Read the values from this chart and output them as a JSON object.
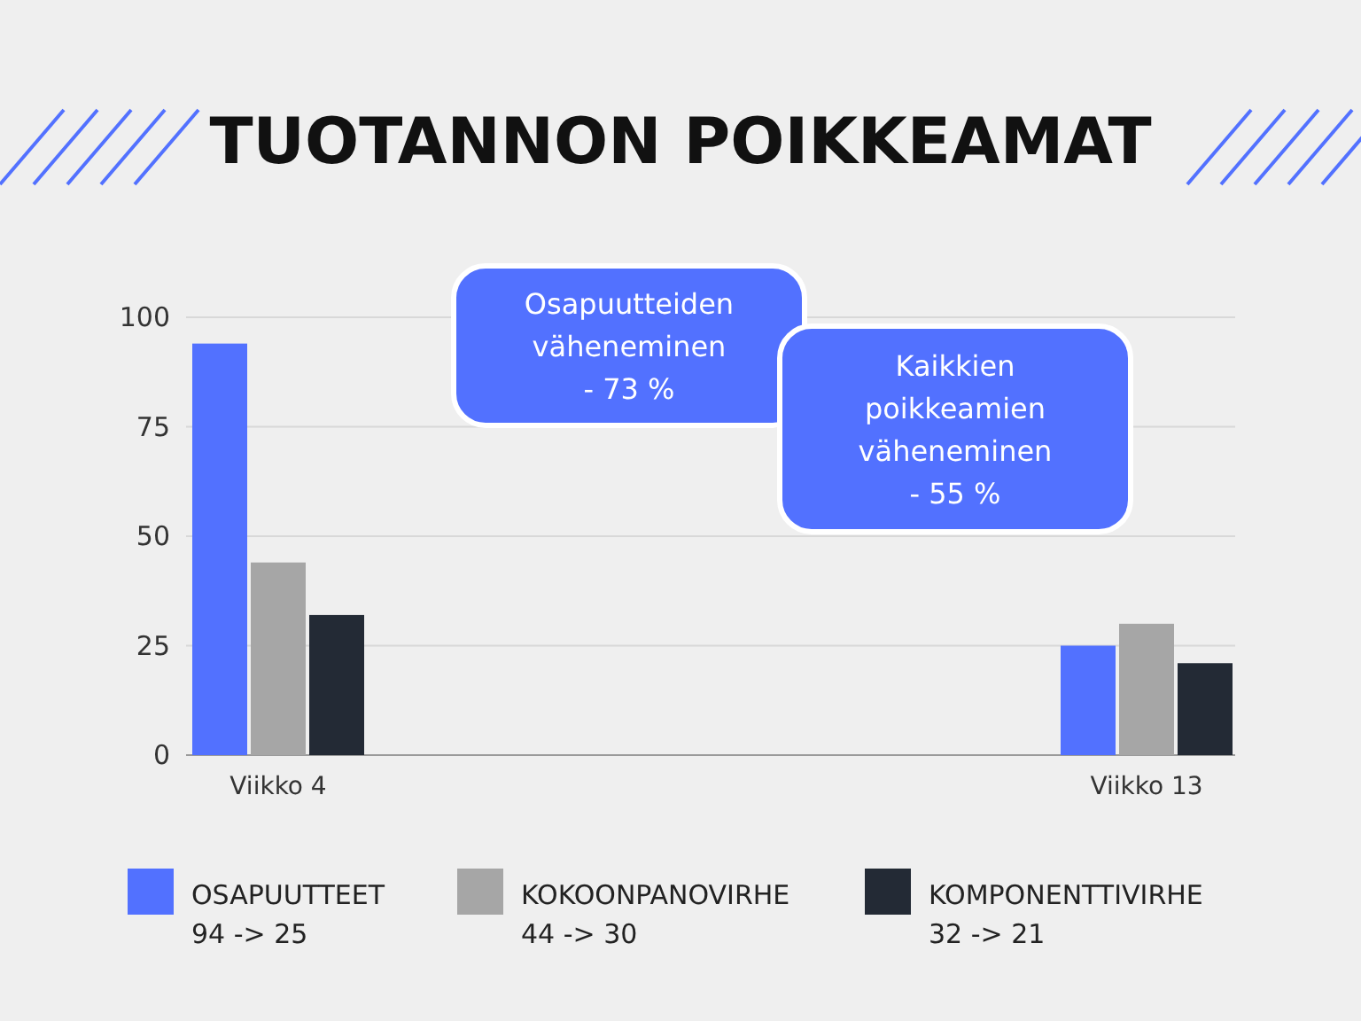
{
  "chart_data": {
    "type": "bar",
    "title": "TUOTANNON POIKKEAMAT",
    "categories": [
      "Viikko 4",
      "Viikko 13"
    ],
    "series": [
      {
        "name": "OSAPUUTTEET\n94 -> 25",
        "color": "#5271ff",
        "values": [
          94,
          25
        ]
      },
      {
        "name": "KOKOONPANOVIRHE\n44 -> 30",
        "color": "#a6a6a6",
        "values": [
          44,
          30
        ]
      },
      {
        "name": "KOMPONENTTIVIRHE\n32 -> 21",
        "color": "#232a35",
        "values": [
          32,
          21
        ]
      }
    ],
    "ylim": [
      0,
      100
    ],
    "yticks": [
      0,
      25,
      50,
      75,
      100
    ],
    "grid": "y",
    "legend": "bottom",
    "annotations": [
      "Osapuutteiden\nväheneminen\n- 73 %",
      "Kaikkien\npoikkeamien\nväheneminen\n- 55 %"
    ]
  }
}
